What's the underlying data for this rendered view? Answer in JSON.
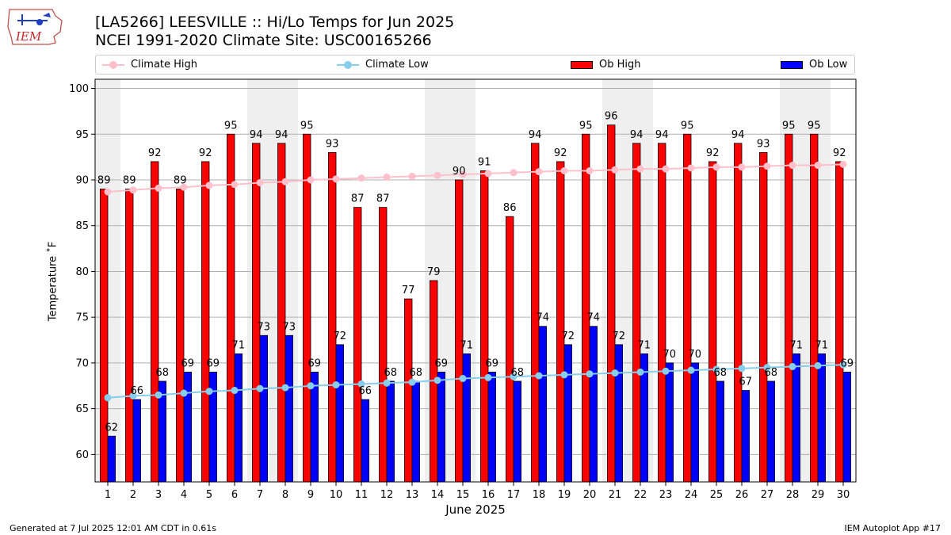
{
  "logo": {
    "text": "IEM"
  },
  "title_line1": "[LA5266] LEESVILLE :: Hi/Lo Temps for Jun 2025",
  "title_line2": "NCEI 1991-2020 Climate Site: USC00165266",
  "legend": {
    "climate_high": "Climate High",
    "climate_low": "Climate Low",
    "ob_high": "Ob High",
    "ob_low": "Ob Low"
  },
  "colors": {
    "ob_high": "#ff0000",
    "ob_low": "#0000ff",
    "climate_high": "#ffc0cb",
    "climate_low": "#87ceeb",
    "weekend_shade": "#efefef",
    "grid": "#b0b0b0"
  },
  "footer": {
    "generated": "Generated at 7 Jul 2025 12:01 AM CDT in 0.61s",
    "app": "IEM Autoplot App #17"
  },
  "chart_data": {
    "type": "bar",
    "xlabel": "June 2025",
    "ylabel": "Temperature ˚F",
    "ylim": [
      57,
      101
    ],
    "yticks": [
      60,
      65,
      70,
      75,
      80,
      85,
      90,
      95,
      100
    ],
    "grid": true,
    "legend_position": "top",
    "categories": [
      "1",
      "2",
      "3",
      "4",
      "5",
      "6",
      "7",
      "8",
      "9",
      "10",
      "11",
      "12",
      "13",
      "14",
      "15",
      "16",
      "17",
      "18",
      "19",
      "20",
      "21",
      "22",
      "23",
      "24",
      "25",
      "26",
      "27",
      "28",
      "29",
      "30"
    ],
    "shaded_days": [
      1,
      7,
      8,
      14,
      15,
      21,
      22,
      28,
      29
    ],
    "series": [
      {
        "name": "Ob High",
        "kind": "bar",
        "values": [
          89,
          89,
          92,
          89,
          92,
          95,
          94,
          94,
          95,
          93,
          87,
          87,
          77,
          79,
          90,
          91,
          86,
          94,
          92,
          95,
          96,
          94,
          94,
          95,
          92,
          94,
          93,
          95,
          95,
          92
        ]
      },
      {
        "name": "Ob Low",
        "kind": "bar",
        "values": [
          62,
          66,
          68,
          69,
          69,
          71,
          73,
          73,
          69,
          72,
          66,
          68,
          68,
          69,
          71,
          69,
          68,
          74,
          72,
          74,
          72,
          71,
          70,
          70,
          68,
          67,
          68,
          71,
          71,
          69
        ]
      },
      {
        "name": "Climate High",
        "kind": "line",
        "values": [
          88.7,
          88.9,
          89.1,
          89.2,
          89.4,
          89.5,
          89.7,
          89.8,
          90.0,
          90.1,
          90.2,
          90.3,
          90.4,
          90.5,
          90.6,
          90.7,
          90.8,
          90.9,
          91.0,
          91.0,
          91.1,
          91.2,
          91.2,
          91.3,
          91.4,
          91.4,
          91.5,
          91.6,
          91.6,
          91.7
        ]
      },
      {
        "name": "Climate Low",
        "kind": "line",
        "values": [
          66.2,
          66.4,
          66.5,
          66.7,
          66.9,
          67.0,
          67.2,
          67.3,
          67.5,
          67.6,
          67.7,
          67.8,
          67.9,
          68.1,
          68.3,
          68.4,
          68.5,
          68.6,
          68.7,
          68.8,
          68.9,
          69.0,
          69.1,
          69.2,
          69.3,
          69.4,
          69.5,
          69.6,
          69.7,
          69.8
        ]
      }
    ]
  }
}
